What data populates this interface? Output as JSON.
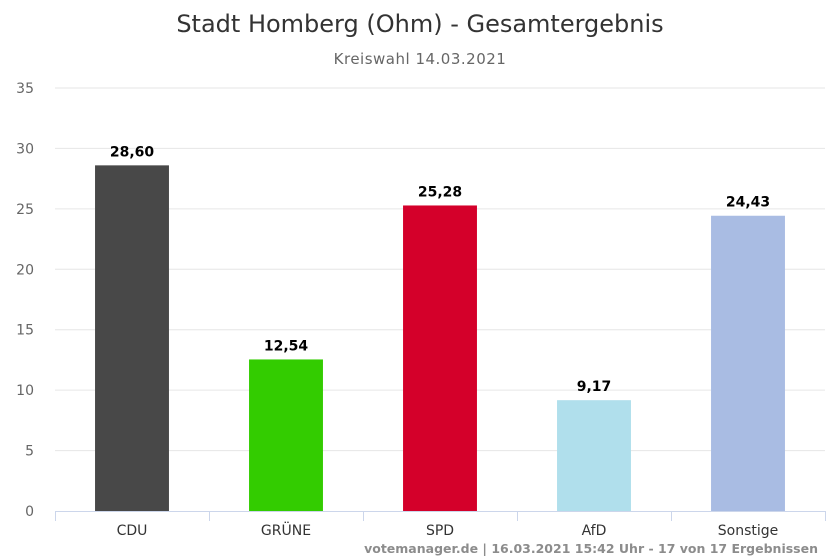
{
  "chart_data": {
    "type": "bar",
    "title": "Stadt Homberg (Ohm) - Gesamtergebnis",
    "subtitle": "Kreiswahl 14.03.2021",
    "categories": [
      "CDU",
      "GRÜNE",
      "SPD",
      "AfD",
      "Sonstige"
    ],
    "values": [
      28.6,
      12.54,
      25.28,
      9.17,
      24.43
    ],
    "data_labels": [
      "28,60",
      "12,54",
      "25,28",
      "9,17",
      "24,43"
    ],
    "colors": [
      "#484848",
      "#33cc00",
      "#d4002a",
      "#b0dfec",
      "#a9bce3"
    ],
    "ylim": [
      0,
      35
    ],
    "yticks": [
      0,
      5,
      10,
      15,
      20,
      25,
      30,
      35
    ],
    "grid": true,
    "legend": "none",
    "xlabel": "",
    "ylabel": ""
  },
  "credit": "votemanager.de | 16.03.2021 15:42 Uhr - 17 von 17 Ergebnissen"
}
